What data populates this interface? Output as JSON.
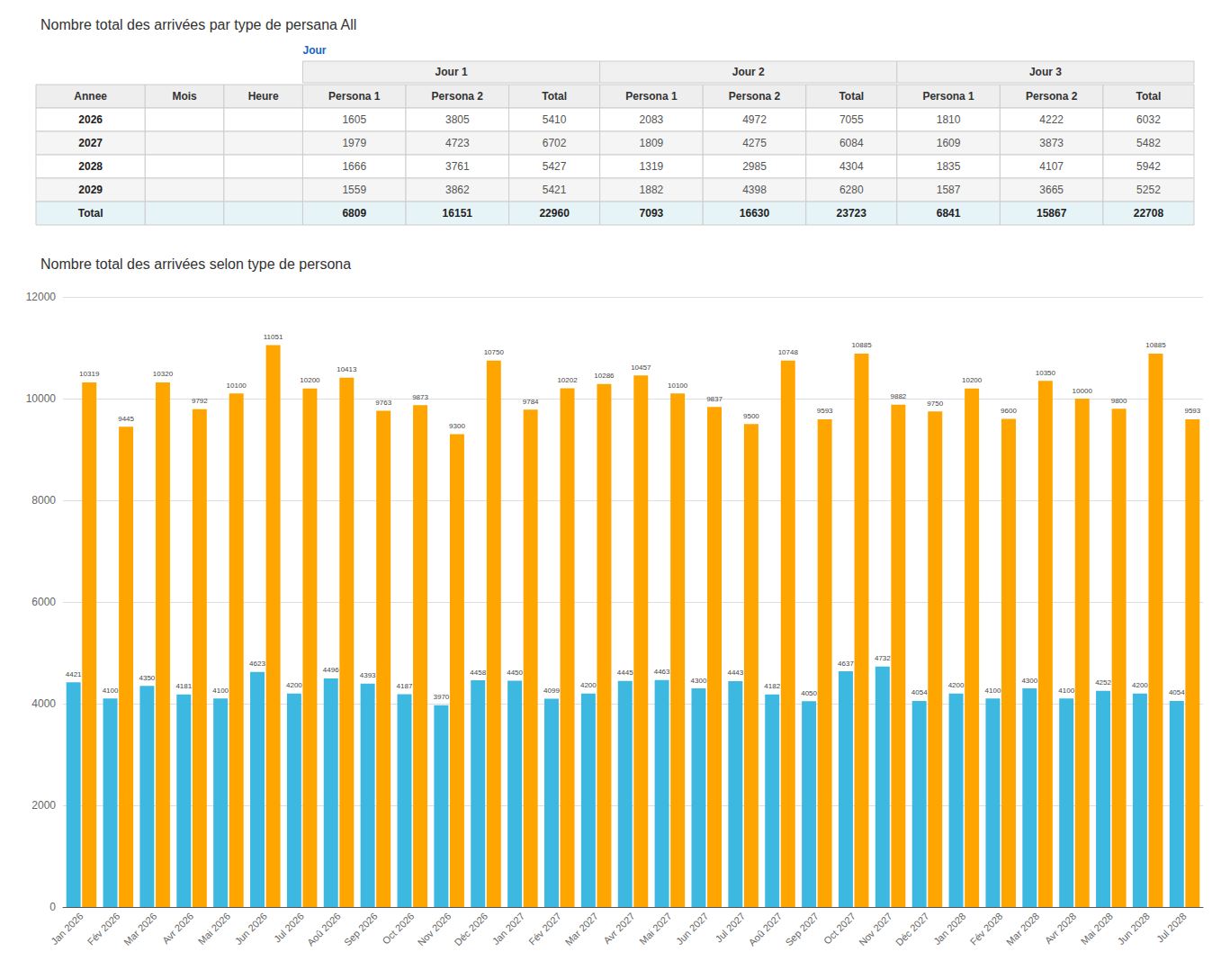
{
  "chart_data": [
    {
      "type": "table",
      "title": "Nombre total des arrivées par type de persana All",
      "subtitle": "Jour",
      "column_groups": [
        "Jour 1",
        "Jour 2",
        "Jour 3"
      ],
      "columns": [
        "Annee",
        "Mois",
        "Heure",
        "Persona 1",
        "Persona 2",
        "Total",
        "Persona 1",
        "Persona 2",
        "Total",
        "Persona 1",
        "Persona 2",
        "Total"
      ],
      "rows": [
        [
          "2026",
          null,
          null,
          "1605",
          "3805",
          "5410",
          "2083",
          "4972",
          "7055",
          "1810",
          "4222",
          "6032"
        ],
        [
          "2027",
          null,
          null,
          "1979",
          "4723",
          "6702",
          "1809",
          "4275",
          "6084",
          "1609",
          "3873",
          "5482"
        ],
        [
          "2028",
          null,
          null,
          "1666",
          "3761",
          "5427",
          "1319",
          "2985",
          "4304",
          "1835",
          "4107",
          "5942"
        ],
        [
          "2029",
          null,
          null,
          "1559",
          "3862",
          "5421",
          "1882",
          "4398",
          "6280",
          "1587",
          "3665",
          "5252"
        ],
        [
          "Total",
          null,
          null,
          "6809",
          "16151",
          "22960",
          "7093",
          "16630",
          "23723",
          "6841",
          "15867",
          "22708"
        ]
      ]
    },
    {
      "type": "bar",
      "title": "Nombre total des arrivées selon type de persona",
      "categories": [
        "Jan 2026",
        "Fév 2026",
        "Mar 2026",
        "Avr 2026",
        "Mai 2026",
        "Jun 2026",
        "Jul 2026",
        "Aoû 2026",
        "Sep 2026",
        "Oct 2026",
        "Nov 2026",
        "Déc 2026",
        "Jan 2027",
        "Fév 2027",
        "Mar 2027",
        "Avr 2027",
        "Mai 2027",
        "Jun 2027",
        "Jul 2027",
        "Aoû 2027",
        "Sep 2027",
        "Oct 2027",
        "Nov 2027",
        "Déc 2027",
        "Jan 2028",
        "Fév 2028",
        "Mar 2028",
        "Avr 2028",
        "Mai 2028",
        "Jun 2028",
        "Jul 2028"
      ],
      "series": [
        {
          "color": "#3DB8E0",
          "values": [
            4421,
            4100,
            4350,
            4181,
            4100,
            4623,
            4200,
            4496,
            4393,
            4187,
            3970,
            4458,
            4450,
            4099,
            4200,
            4445,
            4463,
            4300,
            4443,
            4182,
            4050,
            4637,
            4732,
            4054,
            4200,
            4100,
            4300,
            4100,
            4252,
            4200,
            4054
          ]
        },
        {
          "color": "#FFA500",
          "values": [
            10319,
            9445,
            10320,
            9792,
            10100,
            11051,
            10200,
            10413,
            9763,
            9873,
            9300,
            10750,
            9784,
            10202,
            10286,
            10457,
            10100,
            9837,
            9500,
            10748,
            9593,
            10885,
            9882,
            9750,
            10200,
            9600,
            10350,
            10000,
            9800,
            10885,
            9593
          ]
        }
      ],
      "ylim": [
        0,
        12000
      ],
      "yticks": [
        0,
        2000,
        4000,
        6000,
        8000,
        10000,
        12000
      ],
      "grid": true,
      "data_labels": true
    }
  ]
}
